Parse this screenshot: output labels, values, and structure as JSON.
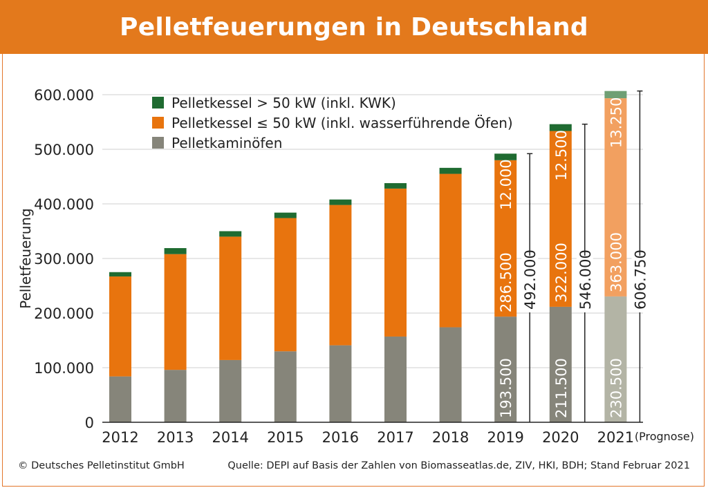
{
  "title": "Pelletfeuerungen in Deutschland",
  "footer": {
    "copyright": "© Deutsches Pelletinstitut GmbH",
    "source": "Quelle: DEPI auf Basis der Zahlen von Biomasseatlas.de, ZIV, HKI, BDH; Stand Februar 2021"
  },
  "chart_data": {
    "type": "bar",
    "stacked": true,
    "ylabel": "Pelletfeuerung",
    "ylim": [
      0,
      600000
    ],
    "yticks": [
      "0",
      "100.000",
      "200.000",
      "300.000",
      "400.000",
      "500.000",
      "600.000"
    ],
    "ytick_values": [
      0,
      100000,
      200000,
      300000,
      400000,
      500000,
      600000
    ],
    "grid": true,
    "legend_position": "top",
    "categories": [
      "2012",
      "2013",
      "2014",
      "2015",
      "2016",
      "2017",
      "2018",
      "2019",
      "2020",
      "2021"
    ],
    "forecast_note": "(Prognose)",
    "forecast_category": "2021",
    "series": [
      {
        "name": "Pelletkaminöfen",
        "color": "#86857a",
        "forecast_color": "#b3b4a5",
        "values": [
          84000,
          96000,
          114000,
          130000,
          141000,
          157000,
          174000,
          193500,
          211500,
          230500
        ]
      },
      {
        "name": "Pelletkessel ≤ 50 kW (inkl. wasserführende Öfen)",
        "color": "#e8740e",
        "forecast_color": "#f2a060",
        "values": [
          183000,
          212000,
          226000,
          244000,
          257000,
          271000,
          281000,
          286500,
          322000,
          363000
        ]
      },
      {
        "name": "Pelletkessel > 50 kW (inkl. KWK)",
        "color": "#1f6b31",
        "forecast_color": "#6f9f74",
        "values": [
          8000,
          11000,
          10000,
          10000,
          10000,
          10000,
          11000,
          12000,
          12500,
          13250
        ]
      }
    ],
    "legend_order": [
      2,
      1,
      0
    ],
    "segment_labels": {
      "2019": [
        "193.500",
        "286.500",
        "12.000"
      ],
      "2020": [
        "211.500",
        "322.000",
        "12.500"
      ],
      "2021": [
        "230.500",
        "363.000",
        "13.250"
      ]
    },
    "totals": {
      "2019": "492.000",
      "2020": "546.000",
      "2021": "606.750"
    }
  }
}
